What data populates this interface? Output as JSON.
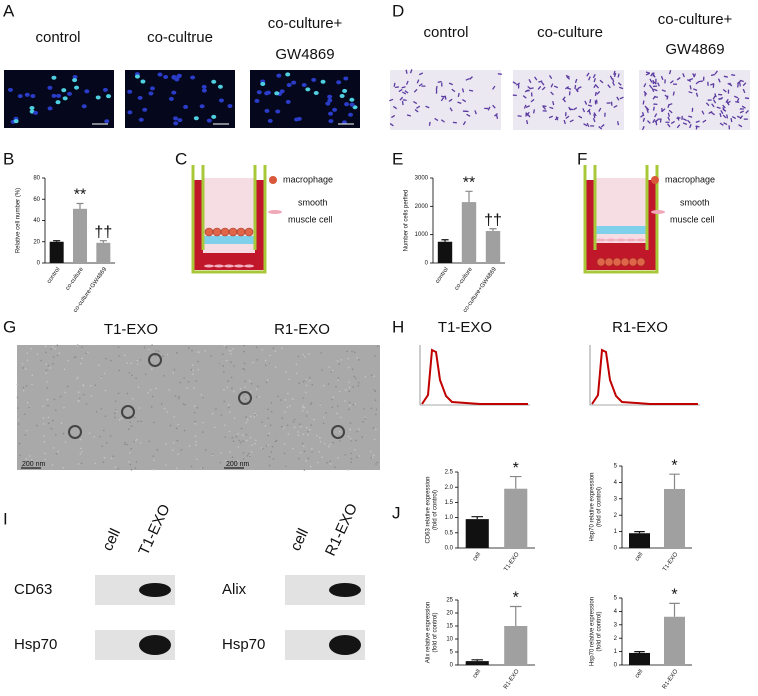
{
  "figure": {
    "panel_labels": [
      "A",
      "B",
      "C",
      "D",
      "E",
      "F",
      "G",
      "H",
      "I",
      "J"
    ],
    "a_titles": [
      "control",
      "co-cultrue",
      "co-culture+",
      "GW4869"
    ],
    "d_titles": [
      "control",
      "co-culture",
      "co-culture+",
      "GW4869"
    ],
    "legend": [
      "macrophage",
      "smooth",
      "muscle cell"
    ],
    "g_titles": [
      "T1-EXO",
      "R1-EXO"
    ],
    "h_titles": [
      "T1-EXO",
      "R1-EXO"
    ],
    "scale_bars": [
      "200 nm",
      "200 nm"
    ],
    "blot_lanes": [
      "cell",
      "T1-EXO",
      "cell",
      "R1-EXO"
    ],
    "blot_rows": [
      "CD63",
      "Hsp70",
      "Alix",
      "Hsp70"
    ]
  },
  "chart_data": [
    {
      "type": "bar",
      "ylabel": [
        "Relative cell number (%)"
      ],
      "categories": [
        "control",
        "co-culture",
        "co-culture+GW4869"
      ],
      "values": [
        20,
        51,
        19
      ],
      "errors": [
        1,
        5,
        2
      ],
      "colors": [
        "#111111",
        "#a0a0a0",
        "#a0a0a0"
      ],
      "annotations": [
        null,
        "**",
        "††"
      ],
      "ylim": [
        0,
        80
      ],
      "yticks": [
        0,
        20,
        40,
        60,
        80
      ]
    },
    {
      "type": "bar",
      "ylabel": [
        "Number of cells perfied"
      ],
      "categories": [
        "control",
        "co-culture",
        "co-culture+GW4869"
      ],
      "values": [
        750,
        2150,
        1130
      ],
      "errors": [
        70,
        380,
        80
      ],
      "colors": [
        "#111111",
        "#a0a0a0",
        "#a0a0a0"
      ],
      "annotations": [
        null,
        "**",
        "††"
      ],
      "ylim": [
        0,
        3000
      ],
      "yticks": [
        0,
        1000,
        2000,
        3000
      ]
    },
    {
      "type": "bar",
      "ylabel": [
        "CD63 relative expression",
        "(fold of control)"
      ],
      "categories": [
        "cell",
        "T1-EXO"
      ],
      "values": [
        0.95,
        1.95
      ],
      "errors": [
        0.08,
        0.4
      ],
      "colors": [
        "#111111",
        "#a0a0a0"
      ],
      "annotations": [
        null,
        "*"
      ],
      "ylim": [
        0,
        2.5
      ],
      "yticks": [
        {
          "value": 0,
          "label": "0.0"
        },
        0.5,
        {
          "value": 1,
          "label": "1.0"
        },
        1.5,
        {
          "value": 2,
          "label": "2.0"
        },
        2.5
      ]
    },
    {
      "type": "bar",
      "ylabel": [
        "Hsp70 relative expression",
        "(fold of control)"
      ],
      "categories": [
        "cell",
        "T1-EXO"
      ],
      "values": [
        0.9,
        3.6
      ],
      "errors": [
        0.1,
        0.9
      ],
      "colors": [
        "#111111",
        "#a0a0a0"
      ],
      "annotations": [
        null,
        "*"
      ],
      "ylim": [
        0,
        5
      ],
      "yticks": [
        0,
        1,
        2,
        3,
        4,
        5
      ]
    },
    {
      "type": "bar",
      "ylabel": [
        "Alix relative expression",
        "(fold of control)"
      ],
      "categories": [
        "cell",
        "R1-EXO"
      ],
      "values": [
        1.5,
        15
      ],
      "errors": [
        0.5,
        7.5
      ],
      "colors": [
        "#111111",
        "#a0a0a0"
      ],
      "annotations": [
        null,
        "*"
      ],
      "ylim": [
        0,
        25
      ],
      "yticks": [
        0,
        5,
        10,
        15,
        20,
        25
      ]
    },
    {
      "type": "bar",
      "ylabel": [
        "Hsp70 relative expression",
        "(fold of control)"
      ],
      "categories": [
        "cell",
        "R1-EXO"
      ],
      "values": [
        0.9,
        3.6
      ],
      "errors": [
        0.1,
        1.0
      ],
      "colors": [
        "#111111",
        "#a0a0a0"
      ],
      "annotations": [
        null,
        "*"
      ],
      "ylim": [
        0,
        5
      ],
      "yticks": [
        0,
        1,
        2,
        3,
        4,
        5
      ]
    }
  ]
}
